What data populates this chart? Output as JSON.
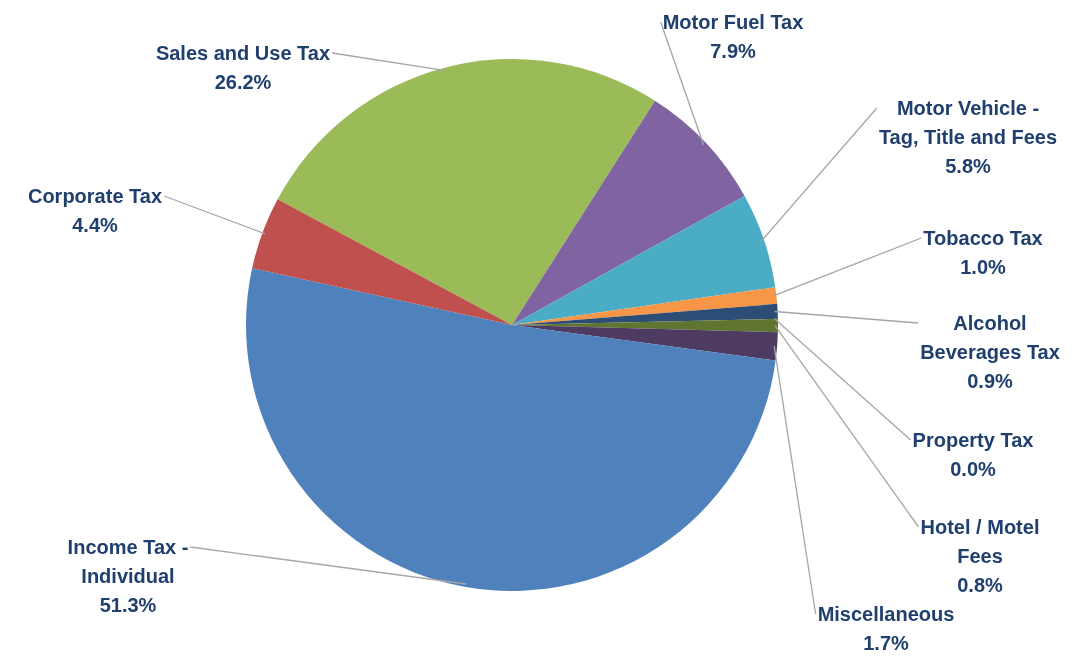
{
  "chart_data": {
    "type": "pie",
    "categories": [
      "Sales and Use Tax",
      "Motor Fuel Tax",
      "Motor Vehicle -\nTag, Title and Fees",
      "Tobacco Tax",
      "Alcohol\nBeverages Tax",
      "Property Tax",
      "Hotel / Motel\nFees",
      "Miscellaneous",
      "Income Tax -\nIndividual",
      "Corporate Tax"
    ],
    "values": [
      26.2,
      7.9,
      5.8,
      1.0,
      0.9,
      0.0,
      0.8,
      1.7,
      51.3,
      4.4
    ],
    "value_labels": [
      "26.2%",
      "7.9%",
      "5.8%",
      "1.0%",
      "0.9%",
      "0.0%",
      "0.8%",
      "1.7%",
      "51.3%",
      "4.4%"
    ],
    "colors": [
      "#9bbb59",
      "#8064a2",
      "#4bacc6",
      "#f79646",
      "#2c4d75",
      "#772c2a",
      "#5f7530",
      "#4d3b62",
      "#4f81bd",
      "#c0504d"
    ]
  }
}
